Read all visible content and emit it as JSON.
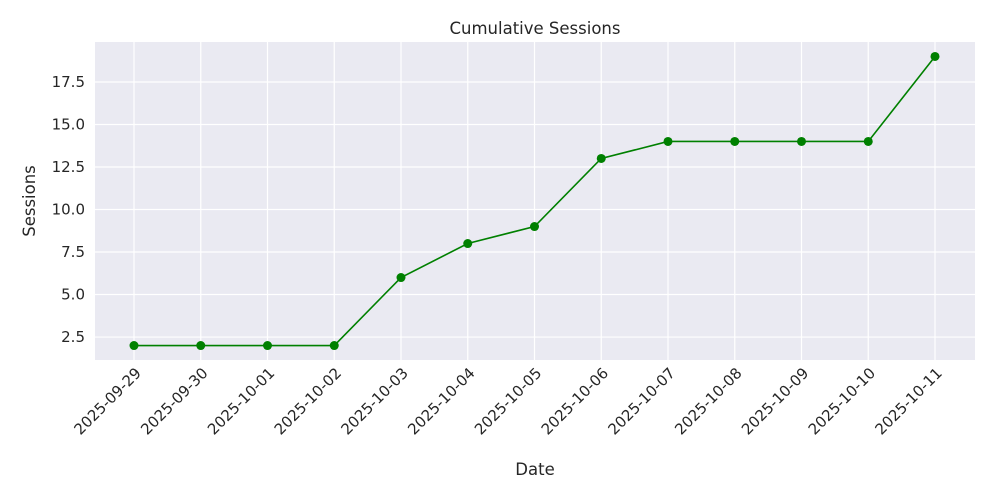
{
  "chart_data": {
    "type": "line",
    "title": "Cumulative Sessions",
    "xlabel": "Date",
    "ylabel": "Sessions",
    "x": [
      "2025-09-29",
      "2025-09-30",
      "2025-10-01",
      "2025-10-02",
      "2025-10-03",
      "2025-10-04",
      "2025-10-05",
      "2025-10-06",
      "2025-10-07",
      "2025-10-08",
      "2025-10-09",
      "2025-10-10",
      "2025-10-11"
    ],
    "series": [
      {
        "values": [
          2,
          2,
          2,
          2,
          6,
          8,
          9,
          13,
          14,
          14,
          14,
          14,
          19
        ]
      }
    ],
    "yticks": [
      "2.5",
      "5.0",
      "7.5",
      "10.0",
      "12.5",
      "15.0",
      "17.5"
    ],
    "ylim": [
      1.15,
      19.85
    ],
    "grid": true,
    "marker": "circle",
    "colors": {
      "line": "#008000",
      "background": "#eaeaf2",
      "grid": "#ffffff"
    }
  }
}
